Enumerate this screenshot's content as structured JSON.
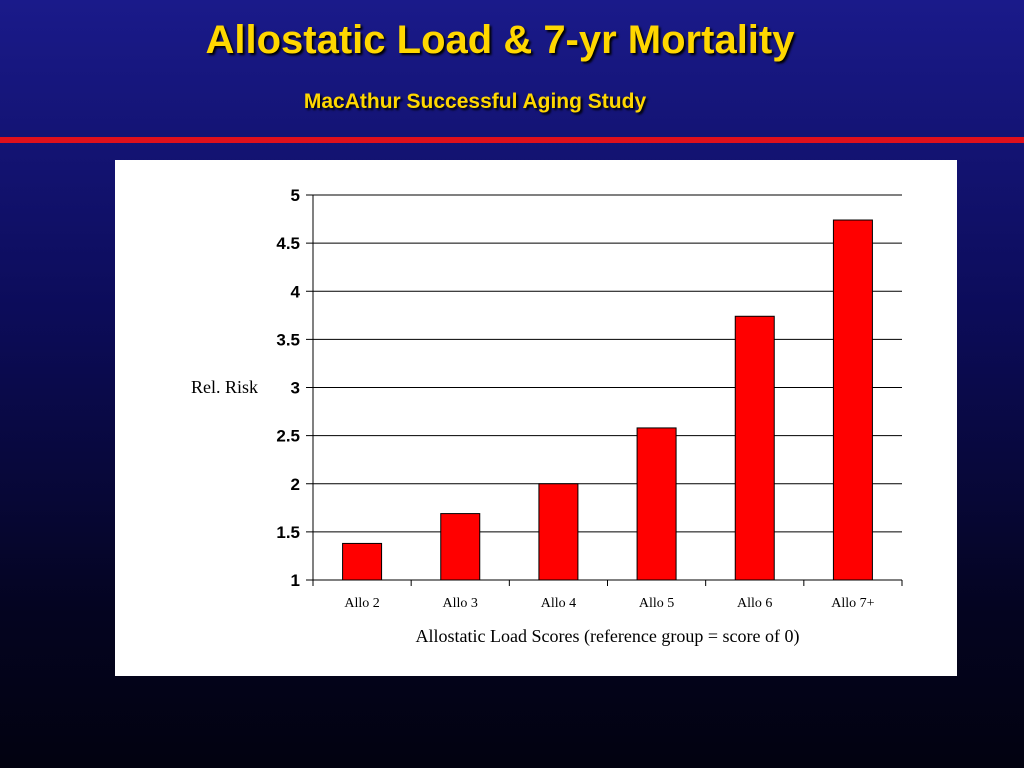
{
  "slide": {
    "title": "Allostatic Load & 7-yr Mortality",
    "subtitle": "MacAthur Successful Aging Study"
  },
  "colors": {
    "title": "#ffd700",
    "bar_fill": "#ff0000",
    "divider": "#e0101c"
  },
  "chart_data": {
    "type": "bar",
    "title": "",
    "categories": [
      "Allo 2",
      "Allo 3",
      "Allo 4",
      "Allo 5",
      "Allo 6",
      "Allo 7+"
    ],
    "values": [
      1.38,
      1.69,
      2.0,
      2.58,
      3.74,
      4.74
    ],
    "xlabel": "Allostatic Load Scores (reference group = score of 0)",
    "ylabel": "Rel. Risk",
    "ylim": [
      1,
      5
    ],
    "yticks": [
      "1",
      "1.5",
      "2",
      "2.5",
      "3",
      "3.5",
      "4",
      "4.5",
      "5"
    ],
    "grid": true,
    "legend": "none"
  }
}
